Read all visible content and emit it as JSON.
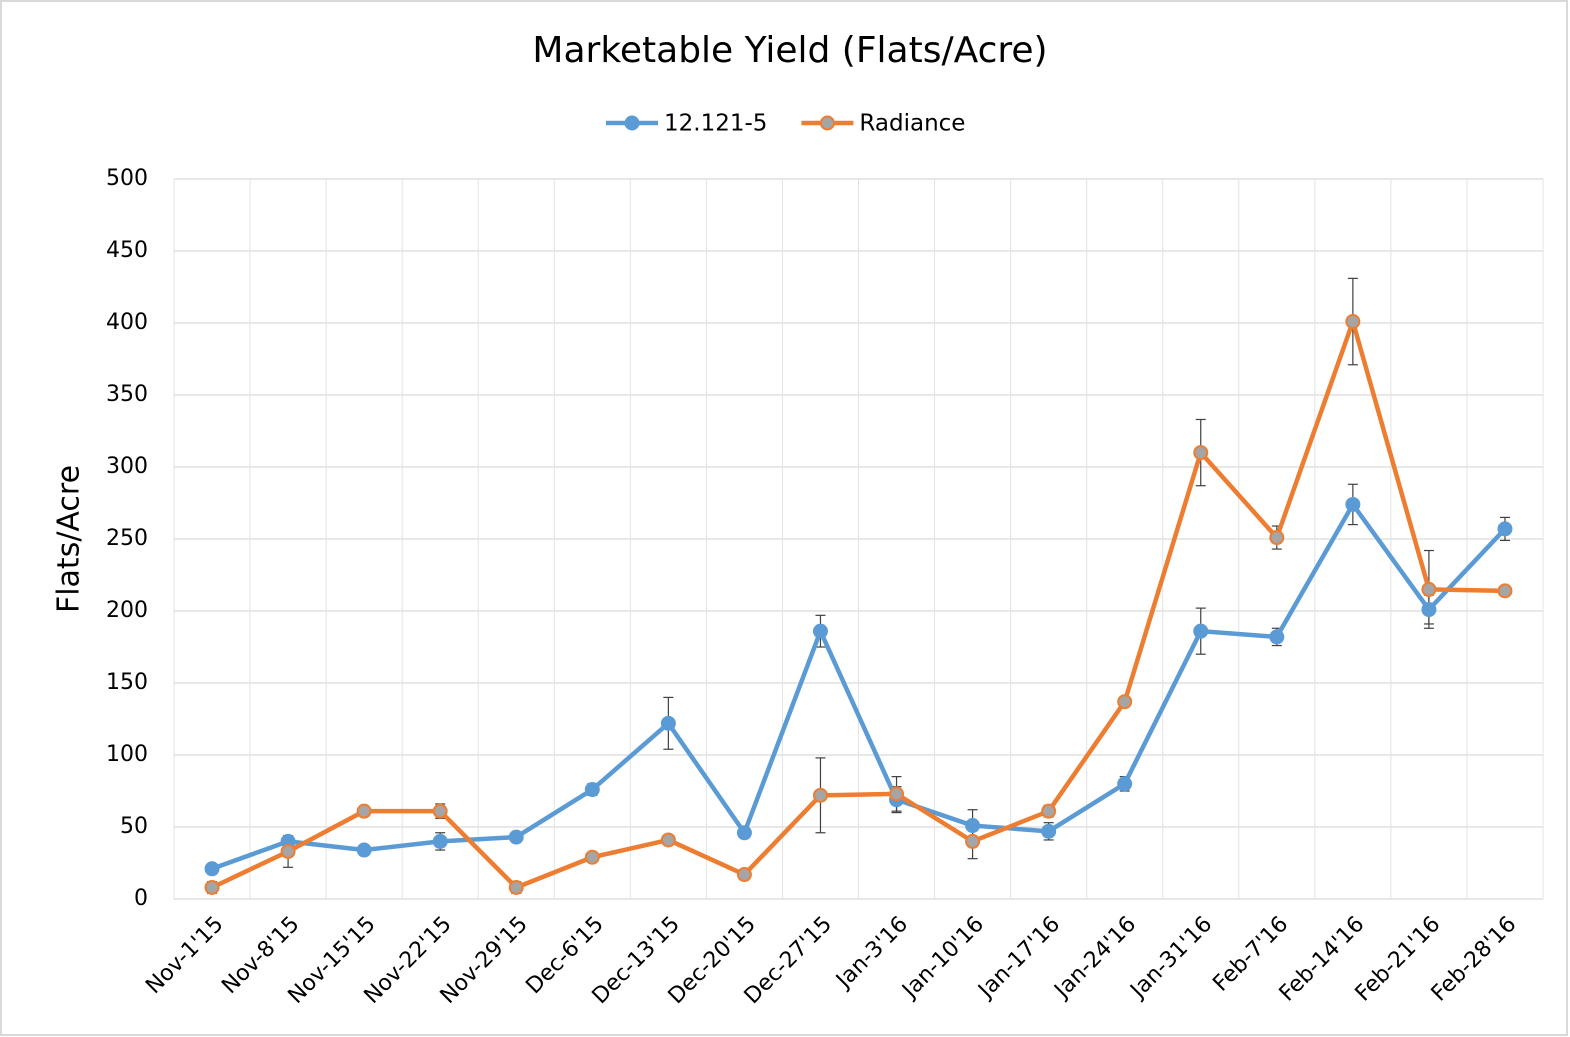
{
  "chart_data": {
    "type": "line",
    "title": "Marketable Yield (Flats/Acre)",
    "y_label": "Flats/Acre",
    "categories": [
      "Nov-1'15",
      "Nov-8'15",
      "Nov-15'15",
      "Nov-22'15",
      "Nov-29'15",
      "Dec-6'15",
      "Dec-13'15",
      "Dec-20'15",
      "Dec-27'15",
      "Jan-3'16",
      "Jan-10'16",
      "Jan-17'16",
      "Jan-24'16",
      "Jan-31'16",
      "Feb-7'16",
      "Feb-14'16",
      "Feb-21'16",
      "Feb-28'16"
    ],
    "series": [
      {
        "name": "12.121-5",
        "color": "#5b9bd5",
        "marker_fill": "#5b9bd5",
        "values": [
          21,
          40,
          34,
          40,
          43,
          76,
          122,
          46,
          186,
          69,
          51,
          47,
          80,
          186,
          182,
          274,
          201,
          257
        ],
        "errors": [
          2,
          3,
          2,
          6,
          2,
          4,
          18,
          2,
          11,
          9,
          11,
          6,
          5,
          16,
          6,
          14,
          10,
          8
        ]
      },
      {
        "name": "Radiance",
        "color": "#ed7d31",
        "marker_fill": "#a5a5a5",
        "values": [
          8,
          33,
          61,
          61,
          8,
          29,
          41,
          17,
          72,
          73,
          40,
          61,
          137,
          310,
          251,
          401,
          215,
          214
        ],
        "errors": [
          4,
          11,
          2,
          5,
          4,
          2,
          3,
          2,
          26,
          12,
          12,
          4,
          2,
          23,
          8,
          30,
          27,
          2
        ]
      }
    ],
    "ylim": [
      0,
      500
    ],
    "yticks": [
      0,
      50,
      100,
      150,
      200,
      250,
      300,
      350,
      400,
      450,
      500
    ],
    "grid": true,
    "legend": "top"
  }
}
